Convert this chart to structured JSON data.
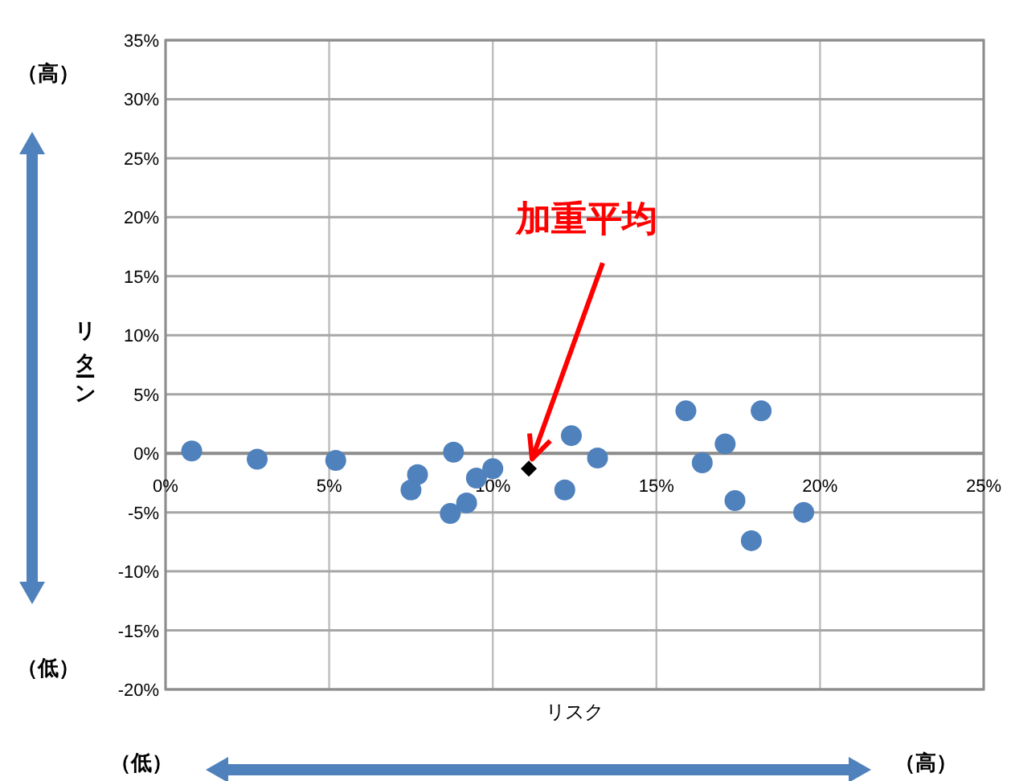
{
  "chart_data": {
    "type": "scatter",
    "xlabel": "リスク",
    "ylabel": "リターン",
    "xlim": [
      0,
      25
    ],
    "ylim": [
      -20,
      35
    ],
    "xticks": [
      {
        "value": 0,
        "label": "0%"
      },
      {
        "value": 5,
        "label": "5%"
      },
      {
        "value": 10,
        "label": "10%"
      },
      {
        "value": 15,
        "label": "15%"
      },
      {
        "value": 20,
        "label": "20%"
      },
      {
        "value": 25,
        "label": "25%"
      }
    ],
    "yticks": [
      {
        "value": -20,
        "label": "-20%"
      },
      {
        "value": -15,
        "label": "-15%"
      },
      {
        "value": -10,
        "label": "-10%"
      },
      {
        "value": -5,
        "label": "-5%"
      },
      {
        "value": 0,
        "label": "0%"
      },
      {
        "value": 5,
        "label": "5%"
      },
      {
        "value": 10,
        "label": "10%"
      },
      {
        "value": 15,
        "label": "15%"
      },
      {
        "value": 20,
        "label": "20%"
      },
      {
        "value": 25,
        "label": "25%"
      },
      {
        "value": 30,
        "label": "30%"
      },
      {
        "value": 35,
        "label": "35%"
      }
    ],
    "grid": true,
    "series": [
      {
        "color": "#4f81bd",
        "marker": "circle",
        "x": [
          0.8,
          2.8,
          5.2,
          7.7,
          7.5,
          8.8,
          8.7,
          9.2,
          9.5,
          10.0,
          12.4,
          12.2,
          13.2,
          15.9,
          16.4,
          17.1,
          17.4,
          17.9,
          18.2,
          19.5
        ],
        "values": [
          0.2,
          -0.5,
          -0.6,
          -1.8,
          -3.1,
          0.1,
          -5.1,
          -4.2,
          -2.1,
          -1.3,
          1.5,
          -3.1,
          -0.4,
          3.6,
          -0.8,
          0.8,
          -4.0,
          -7.4,
          3.6,
          -5.0
        ]
      },
      {
        "color": "#000000",
        "marker": "diamond",
        "x": [
          11.1
        ],
        "values": [
          -1.3
        ]
      }
    ],
    "annotations": [
      {
        "text": "加重平均",
        "x": 11.1,
        "y": -1.3
      },
      "（高）",
      "（低）",
      "（低）",
      "（高）"
    ]
  }
}
